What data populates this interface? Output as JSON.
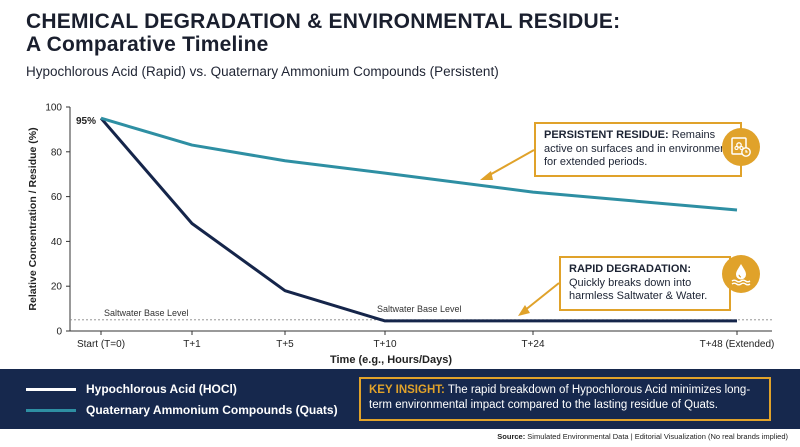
{
  "title_line1": "CHEMICAL DEGRADATION & ENVIRONMENTAL RESIDUE:",
  "title_line2": "A Comparative Timeline",
  "subtitle": "Hypochlorous Acid (Rapid) vs. Quaternary Ammonium Compounds (Persistent)",
  "colors": {
    "hocl": "#15254a",
    "quats": "#2e8fa3",
    "accent": "#e0a22a",
    "footer": "#16284d"
  },
  "chart_data": {
    "type": "line",
    "x": [
      "Start (T=0)",
      "T+1",
      "T+5",
      "T+10",
      "T+24",
      "T+48 (Extended)"
    ],
    "xlabel": "Time (e.g., Hours/Days)",
    "ylabel": "Relative Concentration / Residue (%)",
    "ylim": [
      0,
      100
    ],
    "yticks": [
      0,
      20,
      40,
      60,
      80,
      100
    ],
    "grid": false,
    "series": [
      {
        "name": "Hypochlorous Acid (HOCl)",
        "values": [
          95,
          48,
          18,
          4.5,
          4.5,
          4.5
        ]
      },
      {
        "name": "Quaternary Ammonium Compounds (Quats)",
        "values": [
          95,
          83,
          76,
          70.5,
          62,
          54
        ]
      }
    ],
    "start_label": "95%",
    "baseline_value": 5,
    "baseline_label_left": "Saltwater Base Level",
    "baseline_label_mid": "Saltwater Base Level"
  },
  "callouts": {
    "persistent": {
      "title": "PERSISTENT RESIDUE:",
      "text": " Remains active on surfaces and in environment for extended periods.",
      "icon": "biohazard-clock-icon"
    },
    "rapid": {
      "title": "RAPID DEGRADATION:",
      "text": " Quickly breaks down into harmless Saltwater & Water.",
      "icon": "water-drop-icon"
    }
  },
  "legend": {
    "hocl": "Hypochlorous Acid (HOCl)",
    "quats": "Quaternary Ammonium Compounds (Quats)"
  },
  "insight": {
    "title": "KEY INSIGHT:",
    "text": " The rapid breakdown of Hypochlorous Acid minimizes long-term environmental impact compared to the lasting residue of Quats."
  },
  "source": {
    "label": "Source:",
    "text": " Simulated Environmental Data | Editorial Visualization (No real brands implied)"
  }
}
